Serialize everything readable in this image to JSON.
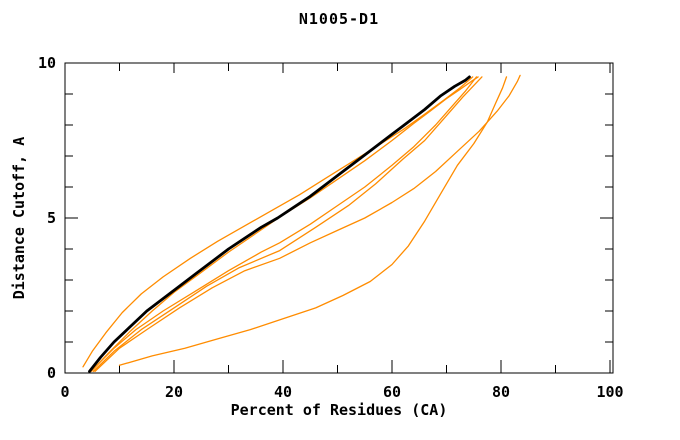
{
  "window": {
    "title": "N1005-D1"
  },
  "chart_data": {
    "type": "line",
    "title": "N1005-D1",
    "xlabel": "Percent of Residues (CA)",
    "ylabel": "Distance Cutoff, A",
    "xlim": [
      0,
      100
    ],
    "ylim": [
      0,
      10
    ],
    "grid": false,
    "legend_position": "none",
    "x_major_ticks": [
      0,
      20,
      40,
      60,
      80,
      100
    ],
    "x_major_labels": [
      "0",
      "20",
      "40",
      "60",
      "80",
      "100"
    ],
    "x_minor_ticks": [
      10,
      30,
      50,
      70,
      90
    ],
    "y_major_ticks": [
      0,
      5,
      10
    ],
    "y_major_labels": [
      "0",
      "5",
      "10"
    ],
    "y_minor_ticks": [
      1,
      2,
      3,
      4,
      6,
      7,
      8,
      9
    ],
    "colors": {
      "axis": "#000000",
      "background": "#ffffff",
      "target": "#000000",
      "prediction": "#ff8c00"
    },
    "series": [
      {
        "name": "prediction-1-hug",
        "color": "#ff8c00",
        "width": 1.3,
        "points": [
          [
            4.8,
            0.05
          ],
          [
            8,
            0.65
          ],
          [
            12,
            1.35
          ],
          [
            16,
            2.0
          ],
          [
            20,
            2.6
          ],
          [
            25,
            3.25
          ],
          [
            30,
            3.9
          ],
          [
            35,
            4.5
          ],
          [
            40,
            5.1
          ],
          [
            45,
            5.65
          ],
          [
            50,
            6.25
          ],
          [
            55,
            6.85
          ],
          [
            60,
            7.5
          ],
          [
            64,
            8.05
          ],
          [
            67,
            8.45
          ],
          [
            70,
            8.85
          ],
          [
            72.5,
            9.15
          ],
          [
            74.5,
            9.4
          ],
          [
            75.8,
            9.55
          ]
        ]
      },
      {
        "name": "prediction-2-steep-early",
        "color": "#ff8c00",
        "width": 1.3,
        "points": [
          [
            3.3,
            0.2
          ],
          [
            5,
            0.7
          ],
          [
            7.5,
            1.3
          ],
          [
            10.5,
            1.95
          ],
          [
            14,
            2.55
          ],
          [
            18,
            3.1
          ],
          [
            23,
            3.7
          ],
          [
            28,
            4.25
          ],
          [
            33,
            4.75
          ],
          [
            38,
            5.25
          ],
          [
            43,
            5.75
          ],
          [
            48,
            6.3
          ],
          [
            53,
            6.85
          ],
          [
            58,
            7.4
          ],
          [
            62,
            7.85
          ],
          [
            66,
            8.35
          ],
          [
            69.5,
            8.8
          ],
          [
            72.5,
            9.2
          ],
          [
            74.8,
            9.55
          ]
        ]
      },
      {
        "name": "prediction-3",
        "color": "#ff8c00",
        "width": 1.3,
        "points": [
          [
            5,
            0.1
          ],
          [
            9,
            0.8
          ],
          [
            13,
            1.4
          ],
          [
            18,
            2.0
          ],
          [
            24,
            2.65
          ],
          [
            30,
            3.3
          ],
          [
            36,
            3.9
          ],
          [
            39.4,
            4.2
          ],
          [
            45,
            4.8
          ],
          [
            50,
            5.4
          ],
          [
            55,
            6.0
          ],
          [
            60,
            6.7
          ],
          [
            64,
            7.3
          ],
          [
            68,
            8.0
          ],
          [
            71,
            8.6
          ],
          [
            73.5,
            9.1
          ],
          [
            75.5,
            9.55
          ]
        ]
      },
      {
        "name": "prediction-4",
        "color": "#ff8c00",
        "width": 1.3,
        "points": [
          [
            5.2,
            0.05
          ],
          [
            9,
            0.7
          ],
          [
            14,
            1.4
          ],
          [
            20,
            2.1
          ],
          [
            26,
            2.8
          ],
          [
            32,
            3.4
          ],
          [
            39.4,
            3.95
          ],
          [
            46,
            4.7
          ],
          [
            52,
            5.4
          ],
          [
            57,
            6.1
          ],
          [
            62,
            6.9
          ],
          [
            66,
            7.5
          ],
          [
            70,
            8.3
          ],
          [
            73,
            8.9
          ],
          [
            76.5,
            9.55
          ]
        ]
      },
      {
        "name": "prediction-5-diverger",
        "color": "#ff8c00",
        "width": 1.3,
        "points": [
          [
            5.5,
            0.05
          ],
          [
            10,
            0.8
          ],
          [
            15,
            1.4
          ],
          [
            21,
            2.1
          ],
          [
            27,
            2.75
          ],
          [
            33,
            3.3
          ],
          [
            39.4,
            3.7
          ],
          [
            45,
            4.2
          ],
          [
            50,
            4.6
          ],
          [
            55,
            5.0
          ],
          [
            60,
            5.5
          ],
          [
            64,
            5.95
          ],
          [
            68,
            6.5
          ],
          [
            72,
            7.15
          ],
          [
            76,
            7.8
          ],
          [
            79.3,
            8.45
          ],
          [
            81.5,
            8.95
          ],
          [
            83,
            9.4
          ],
          [
            83.5,
            9.6
          ]
        ]
      },
      {
        "name": "prediction-6-sagger",
        "color": "#ff8c00",
        "width": 1.3,
        "points": [
          [
            10,
            0.25
          ],
          [
            16,
            0.55
          ],
          [
            22,
            0.8
          ],
          [
            28,
            1.1
          ],
          [
            34,
            1.4
          ],
          [
            40,
            1.75
          ],
          [
            46,
            2.1
          ],
          [
            51,
            2.5
          ],
          [
            56,
            2.95
          ],
          [
            60,
            3.5
          ],
          [
            63,
            4.1
          ],
          [
            66,
            4.9
          ],
          [
            69,
            5.8
          ],
          [
            72,
            6.7
          ],
          [
            75,
            7.4
          ],
          [
            77.5,
            8.1
          ],
          [
            79,
            8.7
          ],
          [
            80.3,
            9.2
          ],
          [
            81,
            9.55
          ]
        ]
      },
      {
        "name": "target-black",
        "color": "#000000",
        "width": 2.8,
        "points": [
          [
            4.5,
            0.05
          ],
          [
            6.5,
            0.5
          ],
          [
            9,
            1.0
          ],
          [
            12,
            1.5
          ],
          [
            15,
            2.0
          ],
          [
            18,
            2.4
          ],
          [
            21,
            2.8
          ],
          [
            24,
            3.2
          ],
          [
            27,
            3.6
          ],
          [
            30,
            4.0
          ],
          [
            33,
            4.35
          ],
          [
            36,
            4.7
          ],
          [
            39,
            5.0
          ],
          [
            42,
            5.35
          ],
          [
            45,
            5.7
          ],
          [
            48,
            6.1
          ],
          [
            51,
            6.5
          ],
          [
            54,
            6.9
          ],
          [
            57,
            7.3
          ],
          [
            60,
            7.7
          ],
          [
            63,
            8.1
          ],
          [
            66,
            8.5
          ],
          [
            69,
            8.95
          ],
          [
            71.5,
            9.25
          ],
          [
            73.5,
            9.45
          ],
          [
            74.2,
            9.55
          ]
        ]
      }
    ]
  }
}
